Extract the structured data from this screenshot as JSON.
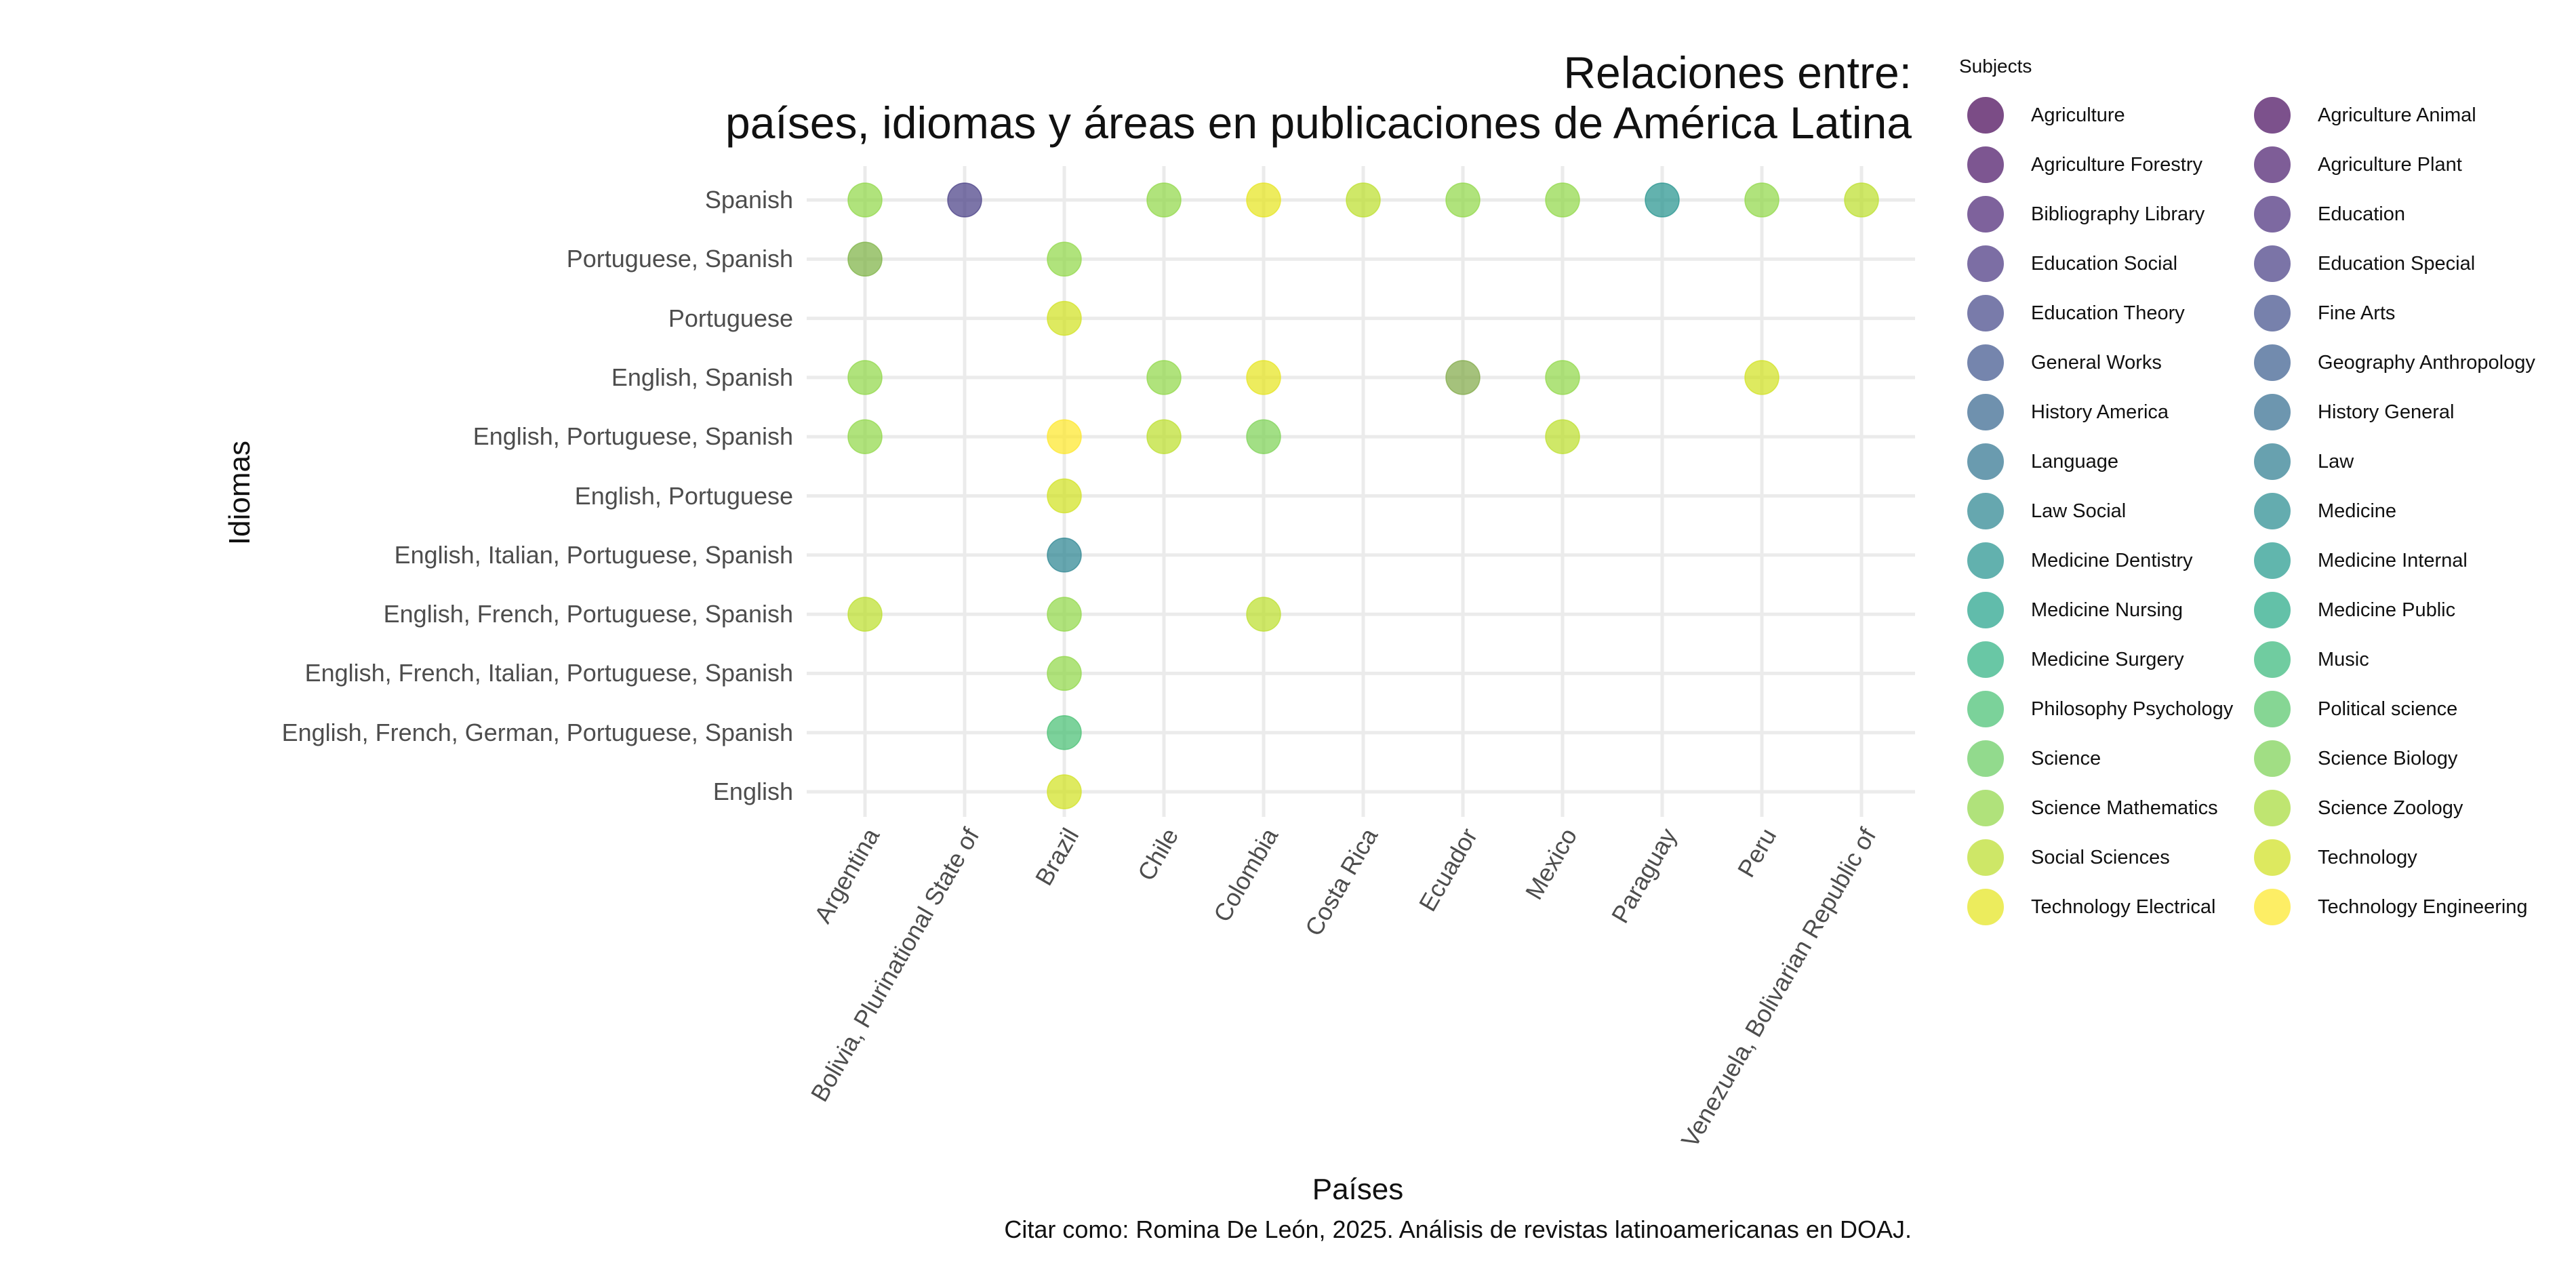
{
  "chart_data": {
    "type": "scatter",
    "title": [
      "Relaciones entre:",
      "países, idiomas y áreas en publicaciones de América Latina"
    ],
    "xlabel": "Países",
    "ylabel": "Idiomas",
    "caption": "Citar como: Romina De León, 2025. Análisis de revistas latinoamericanas en DOAJ.",
    "grid": true,
    "legend_position": "right",
    "x_categories": [
      "Argentina",
      "Bolivia, Plurinational State of",
      "Brazil",
      "Chile",
      "Colombia",
      "Costa Rica",
      "Ecuador",
      "Mexico",
      "Paraguay",
      "Peru",
      "Venezuela, Bolivarian Republic of"
    ],
    "y_categories": [
      "Spanish",
      "Portuguese, Spanish",
      "Portuguese",
      "English, Spanish",
      "English, Portuguese, Spanish",
      "English, Portuguese",
      "English, Italian, Portuguese, Spanish",
      "English, French, Portuguese, Spanish",
      "English, French, Italian, Portuguese, Spanish",
      "English, French, German, Portuguese, Spanish",
      "English"
    ],
    "legend": {
      "title": "Subjects",
      "items": [
        {
          "label": "Agriculture",
          "color": "#440154"
        },
        {
          "label": "Agriculture Animal",
          "color": "#46085c"
        },
        {
          "label": "Agriculture Forestry",
          "color": "#471063"
        },
        {
          "label": "Agriculture Plant",
          "color": "#481a6c"
        },
        {
          "label": "Bibliography Library",
          "color": "#482173"
        },
        {
          "label": "Education",
          "color": "#472a7a"
        },
        {
          "label": "Education Social",
          "color": "#46327e"
        },
        {
          "label": "Education Special",
          "color": "#443a83"
        },
        {
          "label": "Education Theory",
          "color": "#414487"
        },
        {
          "label": "Fine Arts",
          "color": "#3e4c8a"
        },
        {
          "label": "General Works",
          "color": "#3b528b"
        },
        {
          "label": "Geography Anthropology",
          "color": "#375b8d"
        },
        {
          "label": "History America",
          "color": "#33638d"
        },
        {
          "label": "History General",
          "color": "#306a8e"
        },
        {
          "label": "Language",
          "color": "#2c728e"
        },
        {
          "label": "Law",
          "color": "#297a8e"
        },
        {
          "label": "Law Social",
          "color": "#26828e"
        },
        {
          "label": "Medicine",
          "color": "#23898e"
        },
        {
          "label": "Medicine Dentistry",
          "color": "#21918c"
        },
        {
          "label": "Medicine Internal",
          "color": "#1f988b"
        },
        {
          "label": "Medicine Nursing",
          "color": "#1fa088"
        },
        {
          "label": "Medicine Public",
          "color": "#22a884"
        },
        {
          "label": "Medicine Surgery",
          "color": "#2ab07f"
        },
        {
          "label": "Music",
          "color": "#35b779"
        },
        {
          "label": "Philosophy Psychology",
          "color": "#44bf70"
        },
        {
          "label": "Political science",
          "color": "#54c568"
        },
        {
          "label": "Science",
          "color": "#65cb5e"
        },
        {
          "label": "Science Biology",
          "color": "#7ad151"
        },
        {
          "label": "Science Mathematics",
          "color": "#8fd744"
        },
        {
          "label": "Science Zoology",
          "color": "#a5db36"
        },
        {
          "label": "Social Sciences",
          "color": "#bade28"
        },
        {
          "label": "Technology",
          "color": "#d0e11c"
        },
        {
          "label": "Technology Electrical",
          "color": "#e5e419"
        },
        {
          "label": "Technology Engineering",
          "color": "#fde725"
        }
      ]
    },
    "points": [
      {
        "x": "Argentina",
        "y": "Spanish",
        "color": "#8fd744"
      },
      {
        "x": "Bolivia, Plurinational State of",
        "y": "Spanish",
        "color": "#443a83"
      },
      {
        "x": "Chile",
        "y": "Spanish",
        "color": "#8fd744"
      },
      {
        "x": "Colombia",
        "y": "Spanish",
        "color": "#e5e419"
      },
      {
        "x": "Costa Rica",
        "y": "Spanish",
        "color": "#bade28"
      },
      {
        "x": "Ecuador",
        "y": "Spanish",
        "color": "#8fd744"
      },
      {
        "x": "Mexico",
        "y": "Spanish",
        "color": "#8fd744"
      },
      {
        "x": "Paraguay",
        "y": "Spanish",
        "color": "#21918c"
      },
      {
        "x": "Peru",
        "y": "Spanish",
        "color": "#8fd744"
      },
      {
        "x": "Venezuela, Bolivarian Republic of",
        "y": "Spanish",
        "color": "#bade28"
      },
      {
        "x": "Argentina",
        "y": "Portuguese, Spanish",
        "color": "#7ab040"
      },
      {
        "x": "Brazil",
        "y": "Portuguese, Spanish",
        "color": "#8fd744"
      },
      {
        "x": "Brazil",
        "y": "Portuguese",
        "color": "#d0e11c"
      },
      {
        "x": "Argentina",
        "y": "English, Spanish",
        "color": "#8fd744"
      },
      {
        "x": "Chile",
        "y": "English, Spanish",
        "color": "#8fd744"
      },
      {
        "x": "Colombia",
        "y": "English, Spanish",
        "color": "#e5e419"
      },
      {
        "x": "Ecuador",
        "y": "English, Spanish",
        "color": "#7fa845"
      },
      {
        "x": "Mexico",
        "y": "English, Spanish",
        "color": "#8fd744"
      },
      {
        "x": "Peru",
        "y": "English, Spanish",
        "color": "#d0e11c"
      },
      {
        "x": "Argentina",
        "y": "English, Portuguese, Spanish",
        "color": "#8fd744"
      },
      {
        "x": "Brazil",
        "y": "English, Portuguese, Spanish",
        "color": "#fde725"
      },
      {
        "x": "Chile",
        "y": "English, Portuguese, Spanish",
        "color": "#bade28"
      },
      {
        "x": "Colombia",
        "y": "English, Portuguese, Spanish",
        "color": "#7ad151"
      },
      {
        "x": "Mexico",
        "y": "English, Portuguese, Spanish",
        "color": "#bade28"
      },
      {
        "x": "Brazil",
        "y": "English, Portuguese",
        "color": "#d0e11c"
      },
      {
        "x": "Brazil",
        "y": "English, Italian, Portuguese, Spanish",
        "color": "#26828e"
      },
      {
        "x": "Argentina",
        "y": "English, French, Portuguese, Spanish",
        "color": "#bade28"
      },
      {
        "x": "Brazil",
        "y": "English, French, Portuguese, Spanish",
        "color": "#8fd744"
      },
      {
        "x": "Colombia",
        "y": "English, French, Portuguese, Spanish",
        "color": "#bade28"
      },
      {
        "x": "Brazil",
        "y": "English, French, Italian, Portuguese, Spanish",
        "color": "#8fd744"
      },
      {
        "x": "Brazil",
        "y": "English, French, German, Portuguese, Spanish",
        "color": "#44bf70"
      },
      {
        "x": "Brazil",
        "y": "English",
        "color": "#d0e11c"
      }
    ]
  }
}
